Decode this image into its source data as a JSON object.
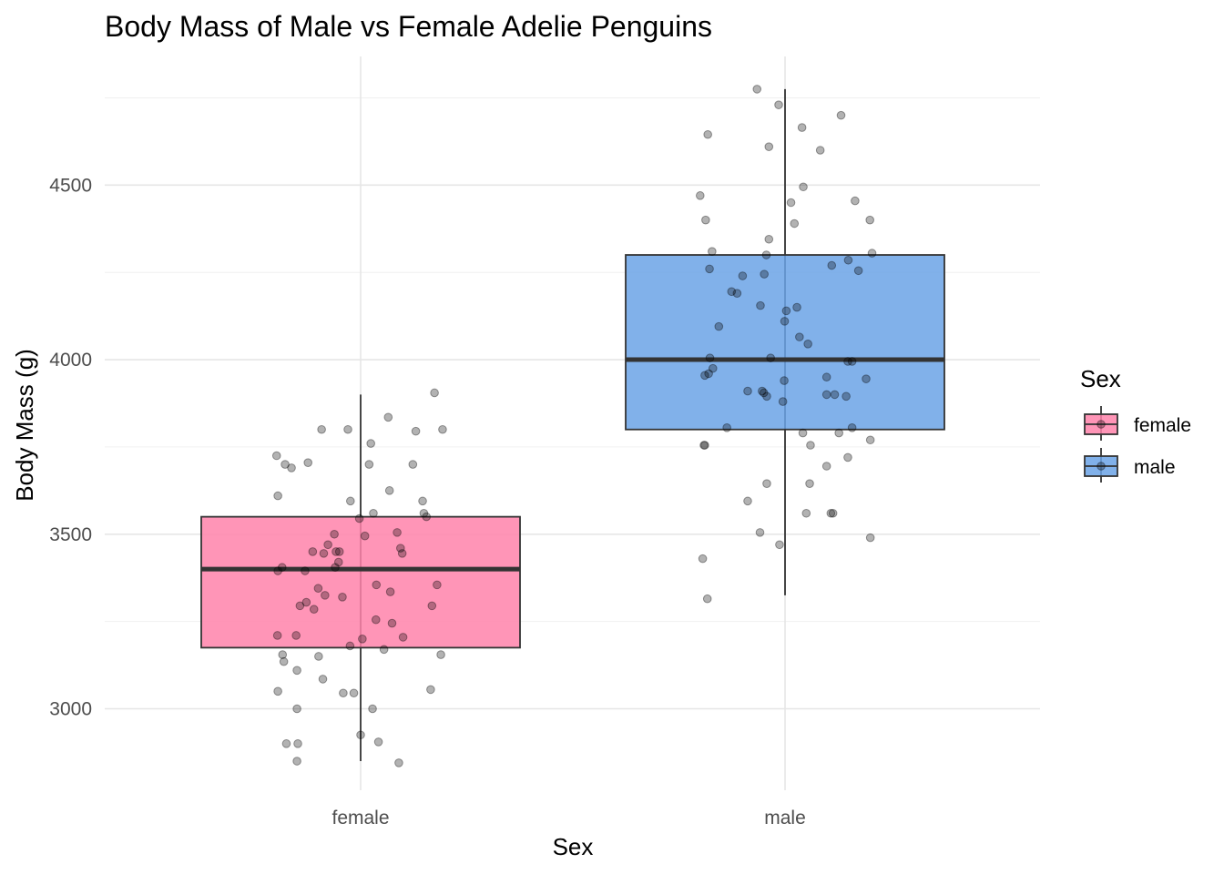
{
  "chart_data": {
    "type": "box",
    "title": "Body Mass of Male vs Female Adelie Penguins",
    "xlabel": "Sex",
    "ylabel": "Body Mass (g)",
    "categories": [
      "female",
      "male"
    ],
    "ylim": [
      2770,
      4830
    ],
    "yticks": [
      3000,
      3500,
      4000,
      4500
    ],
    "grid": true,
    "legend": {
      "title": "Sex",
      "position": "right",
      "entries": [
        {
          "label": "female",
          "color": "#FF82AA"
        },
        {
          "label": "male",
          "color": "#6BA3E6"
        }
      ]
    },
    "boxes": [
      {
        "category": "female",
        "color": "#FF82AA",
        "whisker_low": 2850,
        "q1": 3175,
        "median": 3400,
        "q3": 3550,
        "whisker_high": 3900
      },
      {
        "category": "male",
        "color": "#6BA3E6",
        "whisker_low": 3325,
        "q1": 3800,
        "median": 4000,
        "q3": 4300,
        "whisker_high": 4775
      }
    ],
    "points": [
      {
        "category": "female",
        "offset": -0.198,
        "y": 3725
      },
      {
        "category": "female",
        "offset": -0.178,
        "y": 3700
      },
      {
        "category": "female",
        "offset": -0.163,
        "y": 3690
      },
      {
        "category": "female",
        "offset": -0.124,
        "y": 3705
      },
      {
        "category": "female",
        "offset": -0.092,
        "y": 3800
      },
      {
        "category": "female",
        "offset": -0.03,
        "y": 3800
      },
      {
        "category": "female",
        "offset": 0.065,
        "y": 3835
      },
      {
        "category": "female",
        "offset": 0.13,
        "y": 3795
      },
      {
        "category": "female",
        "offset": 0.174,
        "y": 3905
      },
      {
        "category": "female",
        "offset": 0.193,
        "y": 3800
      },
      {
        "category": "female",
        "offset": 0.024,
        "y": 3760
      },
      {
        "category": "female",
        "offset": 0.02,
        "y": 3700
      },
      {
        "category": "female",
        "offset": 0.123,
        "y": 3700
      },
      {
        "category": "female",
        "offset": 0.068,
        "y": 3625
      },
      {
        "category": "female",
        "offset": -0.195,
        "y": 3610
      },
      {
        "category": "female",
        "offset": -0.024,
        "y": 3595
      },
      {
        "category": "female",
        "offset": 0.146,
        "y": 3595
      },
      {
        "category": "female",
        "offset": 0.149,
        "y": 3560
      },
      {
        "category": "female",
        "offset": 0.155,
        "y": 3550
      },
      {
        "category": "female",
        "offset": 0.03,
        "y": 3560
      },
      {
        "category": "female",
        "offset": -0.003,
        "y": 3545
      },
      {
        "category": "female",
        "offset": -0.062,
        "y": 3500
      },
      {
        "category": "female",
        "offset": 0.01,
        "y": 3495
      },
      {
        "category": "female",
        "offset": 0.086,
        "y": 3505
      },
      {
        "category": "female",
        "offset": -0.077,
        "y": 3470
      },
      {
        "category": "female",
        "offset": -0.058,
        "y": 3450
      },
      {
        "category": "female",
        "offset": -0.05,
        "y": 3450
      },
      {
        "category": "female",
        "offset": -0.113,
        "y": 3450
      },
      {
        "category": "female",
        "offset": -0.087,
        "y": 3445
      },
      {
        "category": "female",
        "offset": 0.094,
        "y": 3460
      },
      {
        "category": "female",
        "offset": 0.098,
        "y": 3445
      },
      {
        "category": "female",
        "offset": -0.052,
        "y": 3420
      },
      {
        "category": "female",
        "offset": -0.06,
        "y": 3405
      },
      {
        "category": "female",
        "offset": -0.195,
        "y": 3395
      },
      {
        "category": "female",
        "offset": -0.185,
        "y": 3405
      },
      {
        "category": "female",
        "offset": -0.131,
        "y": 3395
      },
      {
        "category": "female",
        "offset": 0.037,
        "y": 3355
      },
      {
        "category": "female",
        "offset": 0.07,
        "y": 3335
      },
      {
        "category": "female",
        "offset": 0.18,
        "y": 3355
      },
      {
        "category": "female",
        "offset": -0.1,
        "y": 3345
      },
      {
        "category": "female",
        "offset": -0.084,
        "y": 3325
      },
      {
        "category": "female",
        "offset": -0.043,
        "y": 3320
      },
      {
        "category": "female",
        "offset": -0.128,
        "y": 3305
      },
      {
        "category": "female",
        "offset": -0.143,
        "y": 3295
      },
      {
        "category": "female",
        "offset": -0.11,
        "y": 3285
      },
      {
        "category": "female",
        "offset": 0.168,
        "y": 3295
      },
      {
        "category": "female",
        "offset": 0.036,
        "y": 3255
      },
      {
        "category": "female",
        "offset": 0.074,
        "y": 3245
      },
      {
        "category": "female",
        "offset": -0.196,
        "y": 3210
      },
      {
        "category": "female",
        "offset": -0.152,
        "y": 3210
      },
      {
        "category": "female",
        "offset": 0.004,
        "y": 3200
      },
      {
        "category": "female",
        "offset": 0.1,
        "y": 3205
      },
      {
        "category": "female",
        "offset": -0.025,
        "y": 3180
      },
      {
        "category": "female",
        "offset": 0.055,
        "y": 3170
      },
      {
        "category": "female",
        "offset": -0.184,
        "y": 3155
      },
      {
        "category": "female",
        "offset": -0.099,
        "y": 3150
      },
      {
        "category": "female",
        "offset": 0.189,
        "y": 3155
      },
      {
        "category": "female",
        "offset": -0.181,
        "y": 3135
      },
      {
        "category": "female",
        "offset": -0.15,
        "y": 3110
      },
      {
        "category": "female",
        "offset": -0.089,
        "y": 3085
      },
      {
        "category": "female",
        "offset": -0.195,
        "y": 3050
      },
      {
        "category": "female",
        "offset": -0.041,
        "y": 3045
      },
      {
        "category": "female",
        "offset": -0.016,
        "y": 3045
      },
      {
        "category": "female",
        "offset": 0.165,
        "y": 3055
      },
      {
        "category": "female",
        "offset": -0.15,
        "y": 3000
      },
      {
        "category": "female",
        "offset": 0.028,
        "y": 3000
      },
      {
        "category": "female",
        "offset": 0.0,
        "y": 2925
      },
      {
        "category": "female",
        "offset": -0.175,
        "y": 2900
      },
      {
        "category": "female",
        "offset": -0.148,
        "y": 2900
      },
      {
        "category": "female",
        "offset": 0.042,
        "y": 2905
      },
      {
        "category": "female",
        "offset": -0.15,
        "y": 2850
      },
      {
        "category": "female",
        "offset": 0.09,
        "y": 2845
      },
      {
        "category": "male",
        "offset": -0.066,
        "y": 4775
      },
      {
        "category": "male",
        "offset": -0.015,
        "y": 4730
      },
      {
        "category": "male",
        "offset": 0.132,
        "y": 4700
      },
      {
        "category": "male",
        "offset": 0.04,
        "y": 4665
      },
      {
        "category": "male",
        "offset": -0.182,
        "y": 4645
      },
      {
        "category": "male",
        "offset": -0.038,
        "y": 4610
      },
      {
        "category": "male",
        "offset": 0.083,
        "y": 4600
      },
      {
        "category": "male",
        "offset": 0.043,
        "y": 4495
      },
      {
        "category": "male",
        "offset": -0.2,
        "y": 4470
      },
      {
        "category": "male",
        "offset": 0.165,
        "y": 4455
      },
      {
        "category": "male",
        "offset": 0.014,
        "y": 4450
      },
      {
        "category": "male",
        "offset": -0.187,
        "y": 4400
      },
      {
        "category": "male",
        "offset": 0.022,
        "y": 4390
      },
      {
        "category": "male",
        "offset": 0.2,
        "y": 4400
      },
      {
        "category": "male",
        "offset": -0.038,
        "y": 4345
      },
      {
        "category": "male",
        "offset": -0.172,
        "y": 4310
      },
      {
        "category": "male",
        "offset": -0.044,
        "y": 4300
      },
      {
        "category": "male",
        "offset": 0.205,
        "y": 4305
      },
      {
        "category": "male",
        "offset": 0.149,
        "y": 4285
      },
      {
        "category": "male",
        "offset": 0.11,
        "y": 4270
      },
      {
        "category": "male",
        "offset": -0.178,
        "y": 4260
      },
      {
        "category": "male",
        "offset": -0.049,
        "y": 4245
      },
      {
        "category": "male",
        "offset": -0.1,
        "y": 4240
      },
      {
        "category": "male",
        "offset": 0.173,
        "y": 4255
      },
      {
        "category": "male",
        "offset": -0.126,
        "y": 4195
      },
      {
        "category": "male",
        "offset": -0.113,
        "y": 4190
      },
      {
        "category": "male",
        "offset": -0.058,
        "y": 4155
      },
      {
        "category": "male",
        "offset": 0.003,
        "y": 4140
      },
      {
        "category": "male",
        "offset": 0.028,
        "y": 4150
      },
      {
        "category": "male",
        "offset": -0.001,
        "y": 4110
      },
      {
        "category": "male",
        "offset": -0.156,
        "y": 4095
      },
      {
        "category": "male",
        "offset": 0.034,
        "y": 4065
      },
      {
        "category": "male",
        "offset": 0.054,
        "y": 4045
      },
      {
        "category": "male",
        "offset": -0.177,
        "y": 4005
      },
      {
        "category": "male",
        "offset": -0.034,
        "y": 4005
      },
      {
        "category": "male",
        "offset": 0.148,
        "y": 3995
      },
      {
        "category": "male",
        "offset": 0.158,
        "y": 3995
      },
      {
        "category": "male",
        "offset": -0.17,
        "y": 3975
      },
      {
        "category": "male",
        "offset": -0.189,
        "y": 3955
      },
      {
        "category": "male",
        "offset": -0.18,
        "y": 3960
      },
      {
        "category": "male",
        "offset": 0.098,
        "y": 3950
      },
      {
        "category": "male",
        "offset": 0.191,
        "y": 3945
      },
      {
        "category": "male",
        "offset": -0.002,
        "y": 3940
      },
      {
        "category": "male",
        "offset": -0.088,
        "y": 3910
      },
      {
        "category": "male",
        "offset": -0.054,
        "y": 3910
      },
      {
        "category": "male",
        "offset": -0.05,
        "y": 3905
      },
      {
        "category": "male",
        "offset": -0.043,
        "y": 3895
      },
      {
        "category": "male",
        "offset": 0.098,
        "y": 3900
      },
      {
        "category": "male",
        "offset": 0.117,
        "y": 3900
      },
      {
        "category": "male",
        "offset": 0.144,
        "y": 3895
      },
      {
        "category": "male",
        "offset": -0.005,
        "y": 3880
      },
      {
        "category": "male",
        "offset": -0.137,
        "y": 3805
      },
      {
        "category": "male",
        "offset": 0.158,
        "y": 3805
      },
      {
        "category": "male",
        "offset": 0.042,
        "y": 3790
      },
      {
        "category": "male",
        "offset": 0.127,
        "y": 3790
      },
      {
        "category": "male",
        "offset": 0.201,
        "y": 3770
      },
      {
        "category": "male",
        "offset": -0.191,
        "y": 3755
      },
      {
        "category": "male",
        "offset": -0.189,
        "y": 3755
      },
      {
        "category": "male",
        "offset": 0.06,
        "y": 3755
      },
      {
        "category": "male",
        "offset": 0.148,
        "y": 3720
      },
      {
        "category": "male",
        "offset": 0.098,
        "y": 3695
      },
      {
        "category": "male",
        "offset": 0.058,
        "y": 3645
      },
      {
        "category": "male",
        "offset": -0.043,
        "y": 3645
      },
      {
        "category": "male",
        "offset": -0.088,
        "y": 3595
      },
      {
        "category": "male",
        "offset": 0.05,
        "y": 3560
      },
      {
        "category": "male",
        "offset": 0.113,
        "y": 3560
      },
      {
        "category": "male",
        "offset": 0.108,
        "y": 3560
      },
      {
        "category": "male",
        "offset": -0.059,
        "y": 3505
      },
      {
        "category": "male",
        "offset": 0.201,
        "y": 3490
      },
      {
        "category": "male",
        "offset": -0.013,
        "y": 3470
      },
      {
        "category": "male",
        "offset": -0.194,
        "y": 3430
      },
      {
        "category": "male",
        "offset": -0.183,
        "y": 3315
      }
    ]
  }
}
